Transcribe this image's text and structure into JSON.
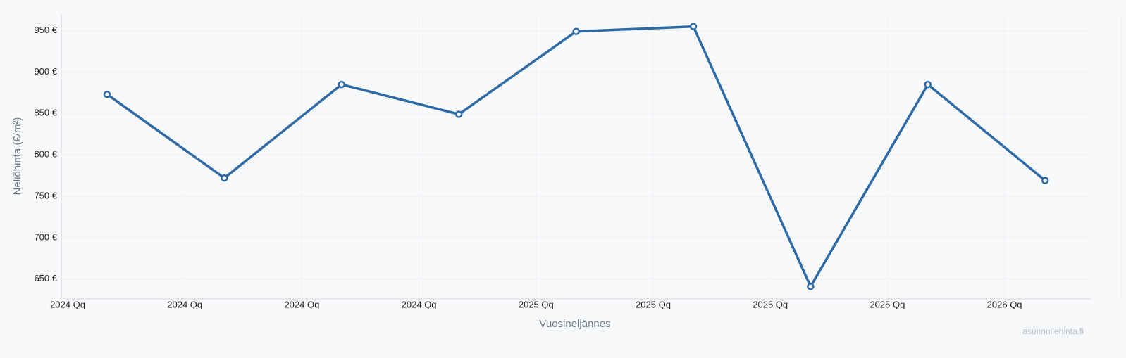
{
  "chart_data": {
    "type": "line",
    "x_label": "Vuosineljännes",
    "y_label": "Neliöhinta (€/m²)",
    "watermark": "asunnollehinta.fi",
    "categories": [
      null,
      null,
      null,
      null,
      null,
      null,
      null,
      null,
      null
    ],
    "x_tick_labels": [
      "2024 Qq",
      "2024 Qq",
      "2024 Qq",
      "2024 Qq",
      "2025 Qq",
      "2025 Qq",
      "2025 Qq",
      "2025 Qq",
      "2026 Qq"
    ],
    "values": [
      873,
      772,
      885,
      849,
      949,
      955,
      641,
      885,
      769
    ],
    "color": "#2e6aa6",
    "ylim": [
      626,
      970
    ],
    "yticks": [
      {
        "value": 650,
        "label": "650 €"
      },
      {
        "value": 700,
        "label": "700 €"
      },
      {
        "value": 750,
        "label": "750 €"
      },
      {
        "value": 800,
        "label": "800 €"
      },
      {
        "value": 850,
        "label": "850 €"
      },
      {
        "value": 900,
        "label": "900 €"
      },
      {
        "value": 950,
        "label": "950 €"
      }
    ],
    "grid": true
  }
}
